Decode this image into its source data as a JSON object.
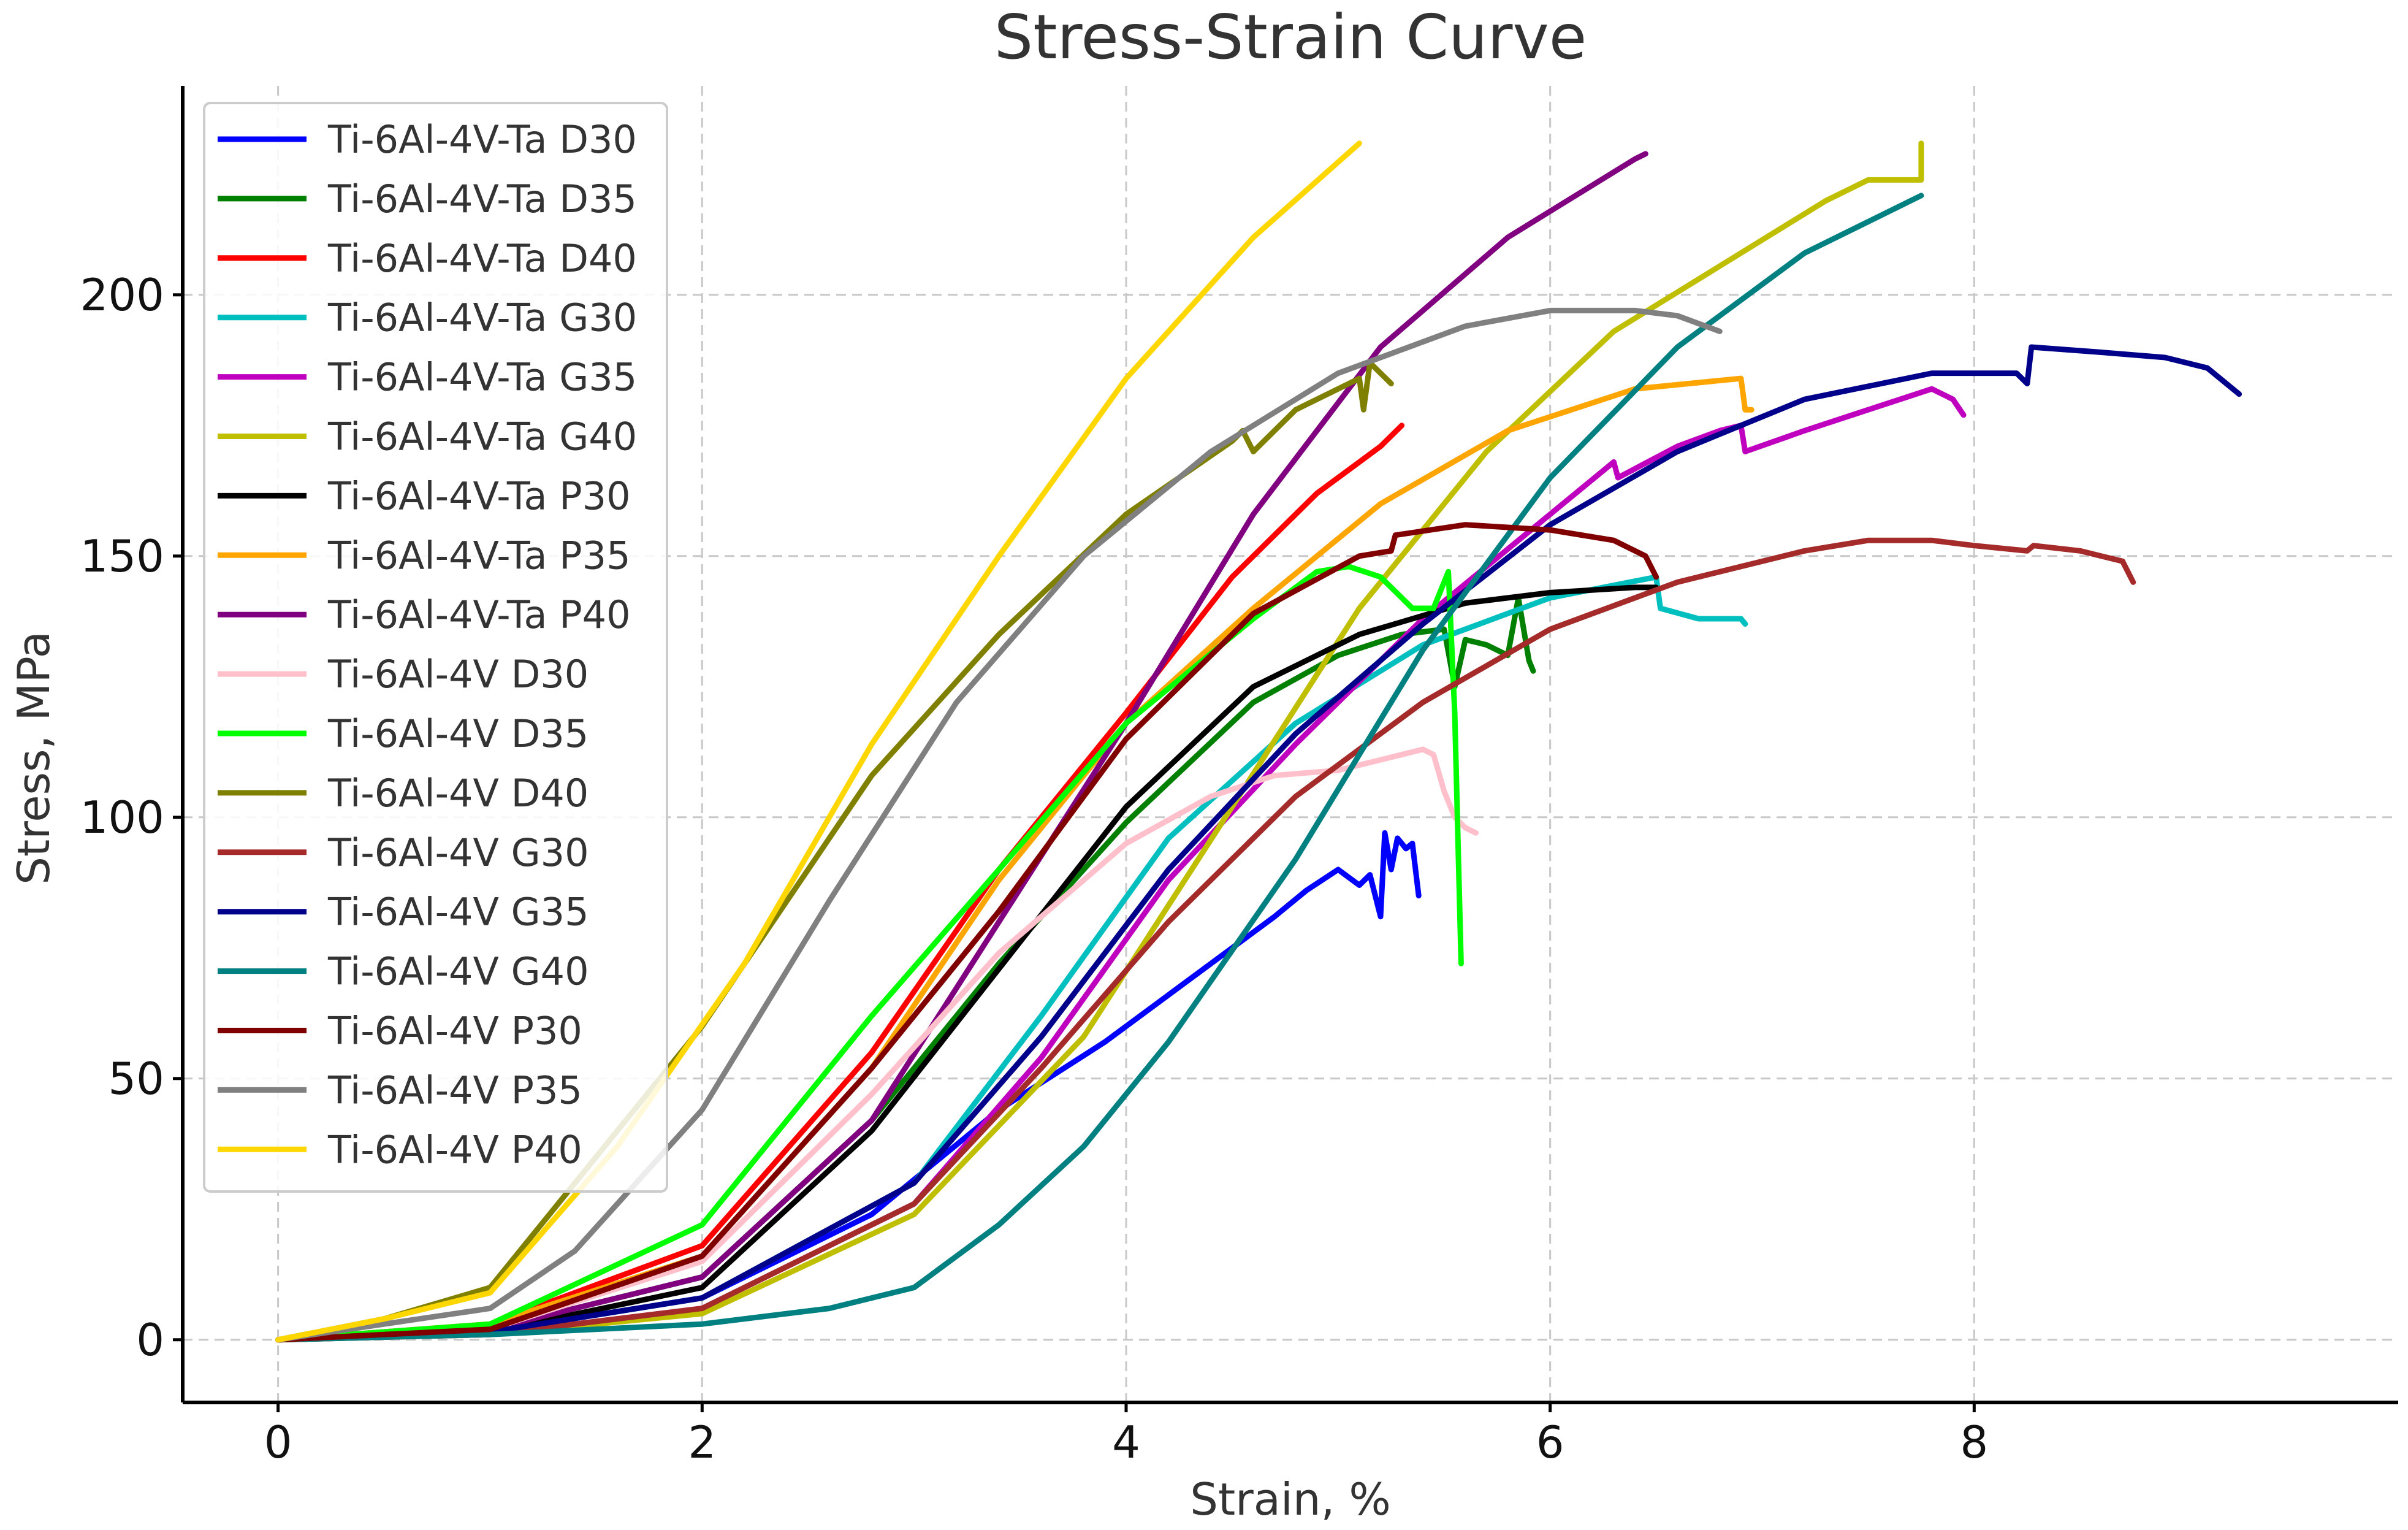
{
  "chart_data": {
    "type": "line",
    "title": "Stress-Strain Curve",
    "xlabel": "Strain, %",
    "ylabel": "Stress, MPa",
    "xlim": [
      -0.45,
      10.0
    ],
    "ylim": [
      -12,
      240
    ],
    "xticks": [
      0,
      2,
      4,
      6,
      8
    ],
    "yticks": [
      0,
      50,
      100,
      150,
      200
    ],
    "grid": true,
    "legend_position": "top-left",
    "series": [
      {
        "name": "Ti-6Al-4V-Ta D30",
        "color": "#0000ff",
        "x": [
          0,
          1,
          2,
          2.8,
          3.4,
          3.9,
          4.3,
          4.7,
          4.85,
          5.0,
          5.1,
          5.15,
          5.2,
          5.22,
          5.25,
          5.28,
          5.32,
          5.35,
          5.38
        ],
        "y": [
          0,
          1.5,
          8,
          24,
          44,
          57,
          69,
          81,
          86,
          90,
          87,
          89,
          81,
          97,
          90,
          96,
          94,
          95,
          85
        ]
      },
      {
        "name": "Ti-6Al-4V-Ta D35",
        "color": "#008000",
        "x": [
          0,
          1,
          2,
          2.8,
          3.4,
          4.0,
          4.6,
          5.0,
          5.3,
          5.5,
          5.55,
          5.6,
          5.7,
          5.8,
          5.85,
          5.9,
          5.92
        ],
        "y": [
          0,
          2,
          12,
          42,
          72,
          99,
          122,
          131,
          135,
          136,
          125,
          134,
          133,
          131,
          142,
          130,
          128
        ]
      },
      {
        "name": "Ti-6Al-4V-Ta D40",
        "color": "#ff0000",
        "x": [
          0,
          1,
          2,
          2.8,
          3.4,
          4.0,
          4.5,
          4.9,
          5.2,
          5.3
        ],
        "y": [
          0,
          3,
          18,
          55,
          90,
          120,
          146,
          162,
          171,
          175
        ]
      },
      {
        "name": "Ti-6Al-4V-Ta G30",
        "color": "#00bfbf",
        "x": [
          0,
          1,
          2,
          3,
          3.6,
          4.2,
          4.8,
          5.4,
          6.0,
          6.5,
          6.52,
          6.7,
          6.9,
          6.92
        ],
        "y": [
          0,
          1.5,
          8,
          30,
          62,
          96,
          118,
          133,
          142,
          146,
          140,
          138,
          138,
          137
        ]
      },
      {
        "name": "Ti-6Al-4V-Ta G35",
        "color": "#bf00bf",
        "x": [
          0,
          1,
          2,
          3,
          3.6,
          4.2,
          4.8,
          5.4,
          6.0,
          6.3,
          6.32,
          6.6,
          6.8,
          6.9,
          6.92,
          7.2,
          7.5,
          7.8,
          7.9,
          7.95
        ],
        "y": [
          0,
          1,
          6,
          26,
          54,
          88,
          114,
          138,
          158,
          168,
          165,
          171,
          174,
          175,
          170,
          174,
          178,
          182,
          180,
          177
        ]
      },
      {
        "name": "Ti-6Al-4V-Ta G40",
        "color": "#bfbf00",
        "x": [
          0,
          1,
          2,
          3,
          3.8,
          4.5,
          5.1,
          5.7,
          6.3,
          6.9,
          7.3,
          7.5,
          7.72,
          7.75,
          7.75
        ],
        "y": [
          0,
          1,
          5,
          24,
          58,
          102,
          140,
          170,
          193,
          208,
          218,
          222,
          222,
          222,
          229
        ]
      },
      {
        "name": "Ti-6Al-4V-Ta P30",
        "color": "#000000",
        "x": [
          0,
          1,
          2,
          2.8,
          3.4,
          4.0,
          4.6,
          5.1,
          5.6,
          6.0,
          6.4,
          6.5
        ],
        "y": [
          0,
          1.5,
          10,
          40,
          71,
          102,
          125,
          135,
          141,
          143,
          144,
          144
        ]
      },
      {
        "name": "Ti-6Al-4V-Ta P35",
        "color": "#ffa500",
        "x": [
          0,
          1,
          2,
          2.8,
          3.4,
          4.0,
          4.6,
          5.2,
          5.8,
          6.4,
          6.9,
          6.92,
          6.95
        ],
        "y": [
          0,
          3,
          16,
          52,
          88,
          118,
          140,
          160,
          174,
          182,
          184,
          178,
          178
        ]
      },
      {
        "name": "Ti-6Al-4V-Ta P40",
        "color": "#800080",
        "x": [
          0,
          1,
          2,
          2.8,
          3.4,
          4.0,
          4.6,
          5.2,
          5.8,
          6.2,
          6.4,
          6.45
        ],
        "y": [
          0,
          2,
          12,
          42,
          80,
          118,
          158,
          190,
          211,
          221,
          226,
          227
        ]
      },
      {
        "name": "Ti-6Al-4V D30",
        "color": "#ffc0cb",
        "x": [
          0,
          1,
          2,
          2.8,
          3.4,
          4.0,
          4.4,
          4.7,
          5.0,
          5.2,
          5.4,
          5.45,
          5.5,
          5.55,
          5.6,
          5.65
        ],
        "y": [
          0,
          2,
          15,
          47,
          74,
          95,
          104,
          108,
          109,
          111,
          113,
          112,
          105,
          100,
          98,
          97
        ]
      },
      {
        "name": "Ti-6Al-4V D35",
        "color": "#00ff00",
        "x": [
          0,
          1,
          2,
          2.8,
          3.4,
          4.0,
          4.6,
          4.9,
          5.05,
          5.2,
          5.35,
          5.45,
          5.52,
          5.55,
          5.58
        ],
        "y": [
          0,
          3,
          22,
          62,
          90,
          118,
          138,
          147,
          148,
          146,
          140,
          140,
          147,
          120,
          72
        ]
      },
      {
        "name": "Ti-6Al-4V D40",
        "color": "#808000",
        "x": [
          0,
          0.5,
          1,
          2,
          2.8,
          3.4,
          4.0,
          4.5,
          4.55,
          4.6,
          4.8,
          5.0,
          5.1,
          5.12,
          5.15,
          5.2,
          5.25
        ],
        "y": [
          0,
          4,
          10,
          60,
          108,
          135,
          158,
          172,
          174,
          170,
          178,
          182,
          184,
          178,
          187,
          185,
          183
        ]
      },
      {
        "name": "Ti-6Al-4V G30",
        "color": "#a52a2a",
        "x": [
          0,
          1,
          2,
          3,
          3.6,
          4.2,
          4.8,
          5.4,
          6.0,
          6.6,
          7.2,
          7.5,
          7.8,
          8.0,
          8.25,
          8.28,
          8.5,
          8.7,
          8.75
        ],
        "y": [
          0,
          1,
          6,
          26,
          52,
          80,
          104,
          122,
          136,
          145,
          151,
          153,
          153,
          152,
          151,
          152,
          151,
          149,
          145
        ]
      },
      {
        "name": "Ti-6Al-4V G35",
        "color": "#00008b",
        "x": [
          0,
          1,
          2,
          3,
          3.6,
          4.2,
          4.8,
          5.4,
          6.0,
          6.6,
          7.2,
          7.8,
          8.2,
          8.25,
          8.27,
          8.6,
          8.9,
          9.1,
          9.25
        ],
        "y": [
          0,
          1.5,
          8,
          30,
          58,
          90,
          116,
          137,
          156,
          170,
          180,
          185,
          185,
          183,
          190,
          189,
          188,
          186,
          181
        ]
      },
      {
        "name": "Ti-6Al-4V G40",
        "color": "#008080",
        "x": [
          0,
          1,
          2,
          2.6,
          3.0,
          3.4,
          3.8,
          4.2,
          4.8,
          5.4,
          6.0,
          6.6,
          7.2,
          7.75
        ],
        "y": [
          0,
          1,
          3,
          6,
          10,
          22,
          37,
          57,
          92,
          132,
          165,
          190,
          208,
          219
        ]
      },
      {
        "name": "Ti-6Al-4V P30",
        "color": "#800000",
        "x": [
          0,
          1,
          2,
          2.8,
          3.4,
          4.0,
          4.6,
          5.1,
          5.25,
          5.27,
          5.6,
          6.0,
          6.3,
          6.45,
          6.5
        ],
        "y": [
          0,
          2,
          16,
          52,
          82,
          115,
          139,
          150,
          151,
          154,
          156,
          155,
          153,
          150,
          146
        ]
      },
      {
        "name": "Ti-6Al-4V P35",
        "color": "#808080",
        "x": [
          0,
          0.5,
          1,
          1.4,
          2,
          2.6,
          3.2,
          3.8,
          4.4,
          5.0,
          5.6,
          6.0,
          6.4,
          6.6,
          6.8
        ],
        "y": [
          0,
          3,
          6,
          17,
          44,
          84,
          122,
          150,
          170,
          185,
          194,
          197,
          197,
          196,
          193
        ]
      },
      {
        "name": "Ti-6Al-4V P40",
        "color": "#ffd700",
        "x": [
          0,
          0.5,
          1,
          1.6,
          2.2,
          2.8,
          3.4,
          4.0,
          4.6,
          5.1
        ],
        "y": [
          0,
          4,
          9,
          37,
          72,
          114,
          150,
          184,
          211,
          229
        ]
      }
    ]
  }
}
